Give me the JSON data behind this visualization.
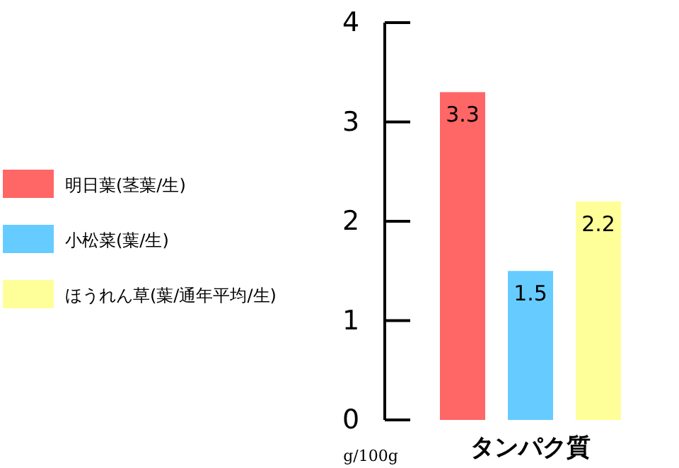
{
  "chart_data": {
    "type": "bar",
    "categories": [
      "タンパク質"
    ],
    "ylabel": "g/100g",
    "ylim": [
      0,
      4
    ],
    "yticks": [
      0,
      1,
      2,
      3,
      4
    ],
    "data_labels": true,
    "legend": "left",
    "grid": false,
    "series": [
      {
        "name": "明日葉(茎葉/生)",
        "color": "#ff6666",
        "values": [
          3.3
        ]
      },
      {
        "name": "小松菜(葉/生)",
        "color": "#66ccff",
        "values": [
          1.5
        ]
      },
      {
        "name": "ほうれん草(葉/通年平均/生)",
        "color": "#ffff99",
        "values": [
          2.2
        ]
      }
    ]
  }
}
